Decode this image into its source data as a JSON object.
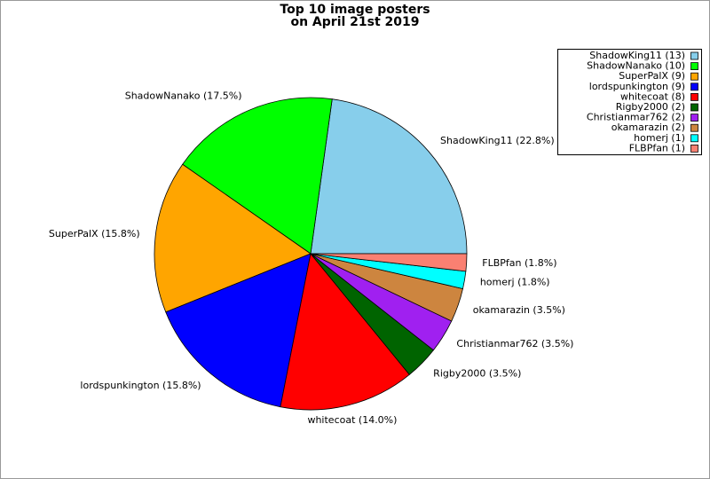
{
  "chart_data": {
    "type": "pie",
    "title": [
      "Top 10 image posters",
      "on April 21st 2019"
    ],
    "categories": [
      "ShadowKing11",
      "ShadowNanako",
      "SuperPalX",
      "lordspunkington",
      "whitecoat",
      "Rigby2000",
      "Christianmar762",
      "okamarazin",
      "homerj",
      "FLBPfan"
    ],
    "values": [
      22.8,
      17.5,
      15.8,
      15.8,
      14.0,
      3.5,
      3.5,
      3.5,
      1.8,
      1.8
    ],
    "value_labels": [
      "ShadowKing11 (22.8%)",
      "ShadowNanako (17.5%)",
      "SuperPalX (15.8%)",
      "lordspunkington (15.8%)",
      "whitecoat (14.0%)",
      "Rigby2000 (3.5%)",
      "Christianmar762 (3.5%)",
      "okamarazin (3.5%)",
      "homerj (1.8%)",
      "FLBPfan (1.8%)"
    ],
    "legend": [
      "ShadowKing11 (13)",
      "ShadowNanako (10)",
      "SuperPalX (9)",
      "lordspunkington (9)",
      "whitecoat (8)",
      "Rigby2000 (2)",
      "Christianmar762 (2)",
      "okamarazin (2)",
      "homerj (1)",
      "FLBPfan (1)"
    ],
    "colors": [
      "#87ceeb",
      "#00ff00",
      "#ffa500",
      "#0000ff",
      "#ff0000",
      "#006400",
      "#a020f0",
      "#cd853f",
      "#00ffff",
      "#fa8072"
    ],
    "legend_position": "upper right"
  }
}
